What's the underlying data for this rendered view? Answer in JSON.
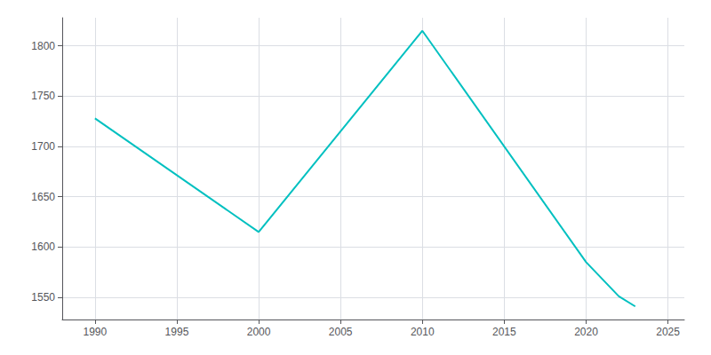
{
  "chart_data": {
    "type": "line",
    "x": [
      1990,
      2000,
      2010,
      2020,
      2022,
      2023
    ],
    "values": [
      1728,
      1615,
      1815,
      1585,
      1551,
      1541
    ],
    "color": "#00C0C0",
    "xlim": [
      1988,
      2026
    ],
    "ylim": [
      1528,
      1828
    ],
    "xticks": [
      1990,
      1995,
      2000,
      2005,
      2010,
      2015,
      2020,
      2025
    ],
    "yticks": [
      1550,
      1600,
      1650,
      1700,
      1750,
      1800
    ],
    "grid": true
  }
}
